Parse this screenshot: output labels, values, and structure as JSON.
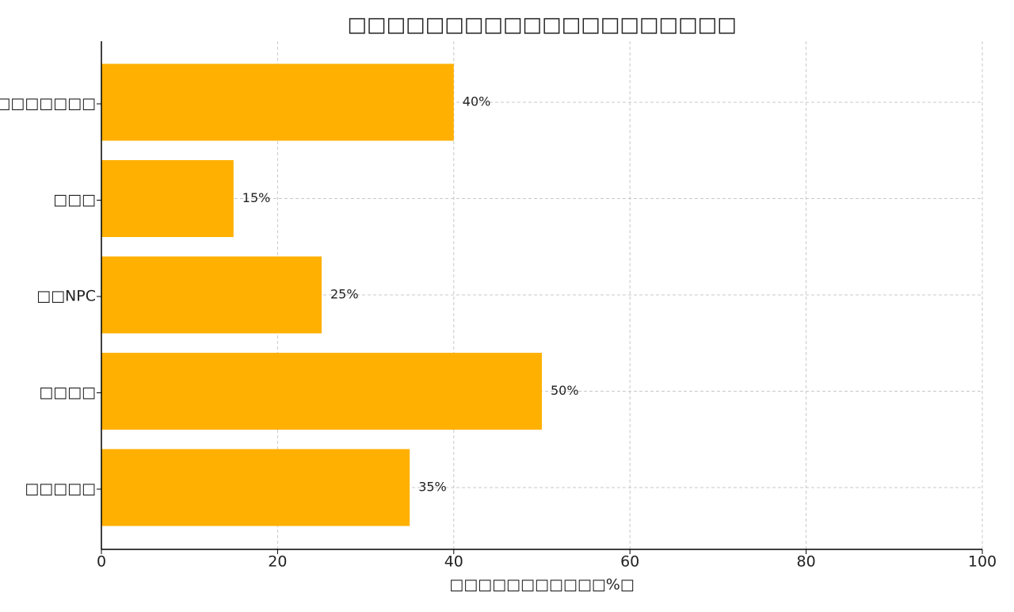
{
  "chart_data": {
    "type": "barh",
    "title": "□□□□□□□□□□□□□□□□□□□□",
    "xlabel": "□□□□□□□□□□□%□",
    "categories": [
      "□□□□□□□□□",
      "□□□",
      "□□NPC",
      "□□□□",
      "□□□□□"
    ],
    "values": [
      40,
      15,
      25,
      50,
      35
    ],
    "value_labels": [
      "40%",
      "15%",
      "25%",
      "50%",
      "35%"
    ],
    "color": "#ffb000",
    "xlim": [
      0,
      100
    ],
    "xticks": [
      0,
      20,
      40,
      60,
      80,
      100
    ],
    "grid": true
  }
}
